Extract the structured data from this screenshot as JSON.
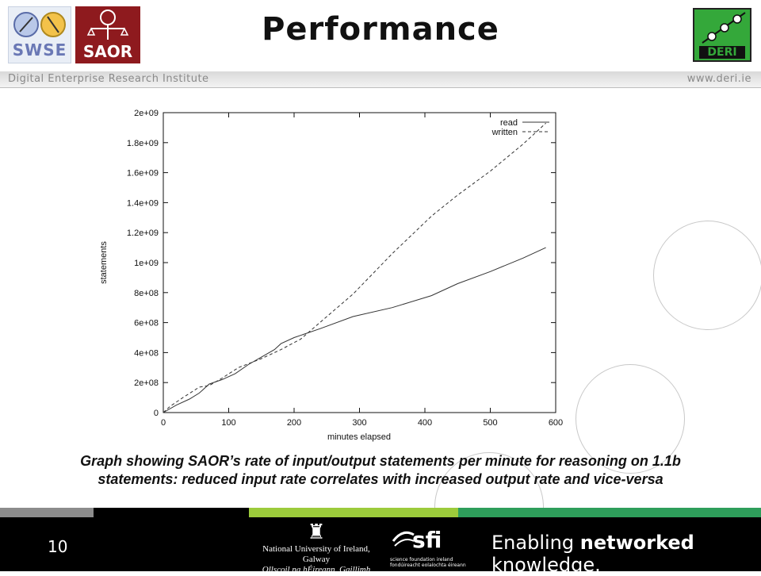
{
  "slide": {
    "title": "Performance",
    "institute": "Digital Enterprise Research Institute",
    "website": "www.deri.ie",
    "caption_line1": "Graph showing SAOR’s rate of input/output statements per minute for reasoning on 1.1b",
    "caption_line2": "statements: reduced input rate correlates with increased output rate and vice-versa",
    "page_number": "10"
  },
  "logos": {
    "swse": "SWSE",
    "saor": "SAOR",
    "deri": "DERI"
  },
  "footer": {
    "nuig_line1": "National University of Ireland, Galway",
    "nuig_line2": "Ollscoil na hÉireann, Gaillimh",
    "sfi_mark": "sfi",
    "sfi_line1": "science foundation ireland",
    "sfi_line2": "fondúireacht eolaíochta éireann",
    "tagline_start": "Enabling ",
    "tagline_bold": "networked",
    "tagline_end": " knowledge."
  },
  "colors": {
    "stripe_gray": "#8c8c8c",
    "stripe_lime": "#9ccb3b",
    "stripe_green": "#2e9e5b",
    "deri_green": "#34a83a",
    "saor_red": "#8e1a1e"
  },
  "chart_data": {
    "type": "line",
    "xlabel": "minutes elapsed",
    "ylabel": "statements",
    "xlim": [
      0,
      600
    ],
    "ylim": [
      0,
      2000000000
    ],
    "x_ticks": [
      0,
      100,
      200,
      300,
      400,
      500,
      600
    ],
    "x_tick_labels": [
      "0",
      "100",
      "200",
      "300",
      "400",
      "500",
      "600"
    ],
    "y_ticks": [
      0,
      200000000,
      400000000,
      600000000,
      800000000,
      1000000000,
      1200000000,
      1400000000,
      1600000000,
      1800000000,
      2000000000
    ],
    "y_tick_labels": [
      "0",
      "2e+08",
      "4e+08",
      "6e+08",
      "8e+08",
      "1e+09",
      "1.2e+09",
      "1.4e+09",
      "1.6e+09",
      "1.8e+09",
      "2e+09"
    ],
    "grid": false,
    "legend": "top-right",
    "series": [
      {
        "name": "read",
        "style": "solid",
        "x": [
          0,
          20,
          40,
          55,
          70,
          90,
          110,
          130,
          150,
          170,
          180,
          200,
          240,
          290,
          350,
          410,
          450,
          500,
          550,
          585
        ],
        "y": [
          0,
          50000000,
          90000000,
          130000000,
          190000000,
          220000000,
          260000000,
          320000000,
          370000000,
          420000000,
          460000000,
          500000000,
          560000000,
          640000000,
          700000000,
          780000000,
          860000000,
          940000000,
          1030000000,
          1100000000
        ]
      },
      {
        "name": "written",
        "style": "dashed",
        "x": [
          0,
          10,
          30,
          55,
          70,
          90,
          115,
          150,
          180,
          210,
          250,
          290,
          350,
          410,
          450,
          500,
          550,
          585
        ],
        "y": [
          0,
          40000000,
          100000000,
          170000000,
          180000000,
          230000000,
          300000000,
          360000000,
          420000000,
          490000000,
          640000000,
          790000000,
          1060000000,
          1310000000,
          1450000000,
          1610000000,
          1790000000,
          1930000000
        ]
      }
    ]
  }
}
